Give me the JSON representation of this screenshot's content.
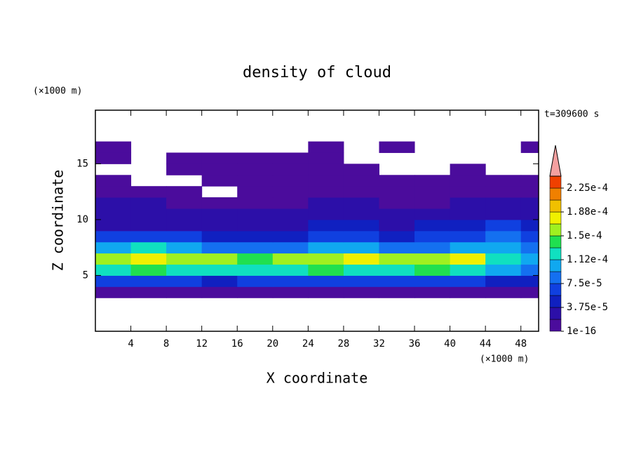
{
  "chart_data": {
    "type": "contour",
    "title": "density of cloud",
    "xlabel": "X coordinate",
    "ylabel": "Z coordinate",
    "x_unit": "(×1000 m)",
    "y_unit": "(×1000 m)",
    "time_label": "t=309600 s",
    "xlim": [
      0,
      50
    ],
    "ylim": [
      0,
      19.8
    ],
    "xticks": [
      4,
      8,
      12,
      16,
      20,
      24,
      28,
      32,
      36,
      40,
      44,
      48
    ],
    "yticks": [
      5,
      10,
      15
    ],
    "x": [
      2,
      6,
      10,
      14,
      18,
      22,
      26,
      30,
      34,
      38,
      42,
      46,
      50
    ],
    "zc": [
      3.5,
      4.5,
      5.5,
      6.5,
      7.5,
      8.5,
      9.5,
      10.5,
      11.5,
      12.5,
      13.5,
      14.5,
      15.5,
      16.5,
      17.5
    ],
    "z": [
      [
        1e-05,
        1e-05,
        1e-05,
        1e-05,
        1e-05,
        1e-05,
        1e-05,
        1e-05,
        1e-05,
        1e-05,
        1e-05,
        1e-05,
        1e-05
      ],
      [
        6e-05,
        7e-05,
        6e-05,
        5e-05,
        6e-05,
        7e-05,
        6e-05,
        6e-05,
        7e-05,
        6e-05,
        6e-05,
        5e-05,
        5e-05
      ],
      [
        0.00013,
        0.00014,
        0.00013,
        0.00012,
        0.00012,
        0.00013,
        0.00014,
        0.00013,
        0.00013,
        0.00014,
        0.00013,
        0.0001,
        9e-05
      ],
      [
        0.00016,
        0.00017,
        0.00016,
        0.00015,
        0.00014,
        0.00015,
        0.00016,
        0.00017,
        0.00016,
        0.00016,
        0.00017,
        0.00013,
        0.00011
      ],
      [
        0.000105,
        0.00012,
        0.00011,
        9e-05,
        8e-05,
        9e-05,
        0.0001,
        0.0001,
        9e-05,
        9e-05,
        0.0001,
        0.00011,
        8e-05
      ],
      [
        6e-05,
        6e-05,
        6e-05,
        5e-05,
        5e-05,
        5e-05,
        6e-05,
        6e-05,
        5e-05,
        6e-05,
        6e-05,
        8e-05,
        6e-05
      ],
      [
        3e-05,
        3e-05,
        3e-05,
        3e-05,
        3e-05,
        3e-05,
        4e-05,
        4e-05,
        3e-05,
        4e-05,
        5e-05,
        6e-05,
        4e-05
      ],
      [
        2.5e-05,
        2.5e-05,
        2e-05,
        2e-05,
        2e-05,
        2.5e-05,
        2.5e-05,
        2.5e-05,
        2e-05,
        2.5e-05,
        3e-05,
        3e-05,
        2.5e-05
      ],
      [
        2e-05,
        2e-05,
        1.5e-05,
        1e-05,
        1e-05,
        1.5e-05,
        2e-05,
        2e-05,
        1.5e-05,
        1.5e-05,
        2e-05,
        2e-05,
        2e-05
      ],
      [
        1e-05,
        1e-05,
        1e-05,
        null,
        1e-05,
        1e-05,
        1e-05,
        1e-05,
        1e-05,
        1e-05,
        1e-05,
        1e-05,
        1e-05
      ],
      [
        1e-05,
        null,
        null,
        1e-05,
        1e-05,
        1e-05,
        1e-05,
        1e-05,
        1e-05,
        1e-05,
        1e-05,
        1e-05,
        1e-05
      ],
      [
        null,
        null,
        1e-05,
        1e-05,
        1e-05,
        1e-05,
        1e-05,
        1e-05,
        null,
        null,
        1e-05,
        null,
        null
      ],
      [
        1e-05,
        null,
        1e-05,
        1e-05,
        1e-05,
        1e-05,
        1e-05,
        null,
        null,
        null,
        null,
        null,
        null
      ],
      [
        1e-05,
        null,
        null,
        null,
        null,
        null,
        1e-05,
        null,
        1e-05,
        null,
        null,
        null,
        1e-05
      ],
      [
        null,
        null,
        null,
        null,
        null,
        null,
        null,
        null,
        null,
        null,
        null,
        null,
        null
      ]
    ],
    "levels": [
      1e-16,
      1.875e-05,
      3.75e-05,
      5.625e-05,
      7.5e-05,
      9.375e-05,
      0.0001125,
      0.00013125,
      0.00015,
      0.00016875,
      0.0001875,
      0.00020625,
      0.000225,
      0.00024375
    ],
    "colors": [
      "#4b0c9c",
      "#2c0fa8",
      "#1020c0",
      "#1040e0",
      "#1470f0",
      "#10a8f0",
      "#10e0c0",
      "#20e050",
      "#a0f020",
      "#f0f000",
      "#f0c000",
      "#f08000",
      "#f04000"
    ],
    "extend_color": "#f4a0a0",
    "colorbar_ticks": [
      {
        "value": 1e-16,
        "label": "1e-16"
      },
      {
        "value": 3.75e-05,
        "label": "3.75e-5"
      },
      {
        "value": 7.5e-05,
        "label": "7.5e-5"
      },
      {
        "value": 0.0001125,
        "label": "1.12e-4"
      },
      {
        "value": 0.00015,
        "label": "1.5e-4"
      },
      {
        "value": 0.0001875,
        "label": "1.88e-4"
      },
      {
        "value": 0.000225,
        "label": "2.25e-4"
      }
    ]
  }
}
